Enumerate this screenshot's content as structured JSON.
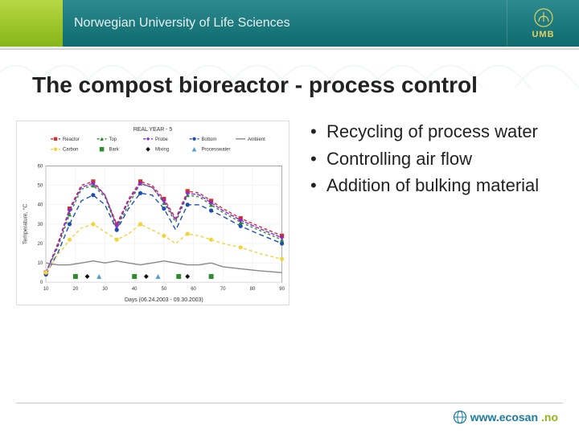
{
  "header": {
    "org_name": "Norwegian University of Life Sciences",
    "logo_text": "UMB",
    "left_block_color": "#8fb51b",
    "main_color": "#18797d"
  },
  "title": "The compost bioreactor - process control",
  "bullets": [
    "Recycling of process water",
    "Controlling air flow",
    "Addition of bulking material"
  ],
  "chart": {
    "type": "line",
    "title": "REAL YEAR - 5",
    "xlabel": "Days (06.24.2003 - 09.30.2003)",
    "ylabel": "Temperature, °C",
    "background_color": "#ffffff",
    "grid_color": "#e8e8e8",
    "xlim": [
      10,
      90
    ],
    "ylim": [
      0,
      60
    ],
    "xtick_step": 10,
    "ytick_step": 10,
    "title_fontsize": 7,
    "axis_fontsize": 7,
    "tick_fontsize": 6,
    "legend_fontsize": 6,
    "legend_position": "top-inside",
    "x": [
      10,
      14,
      18,
      22,
      26,
      30,
      34,
      38,
      42,
      46,
      50,
      54,
      58,
      62,
      66,
      70,
      76,
      82,
      90
    ],
    "series": [
      {
        "name": "Reactor",
        "color": "#d62c2c",
        "dash": "4 3",
        "marker": "square",
        "y": [
          5,
          20,
          38,
          50,
          52,
          45,
          30,
          43,
          52,
          50,
          43,
          33,
          47,
          46,
          42,
          38,
          33,
          29,
          24
        ]
      },
      {
        "name": "Top",
        "color": "#2e8b2e",
        "dash": "3 3",
        "marker": "triangle",
        "y": [
          5,
          18,
          35,
          48,
          50,
          44,
          28,
          40,
          51,
          49,
          41,
          31,
          45,
          44,
          40,
          36,
          31,
          27,
          22
        ]
      },
      {
        "name": "Probe",
        "color": "#8a2be2",
        "dash": "5 2",
        "marker": "diamond",
        "y": [
          5,
          19,
          37,
          49,
          51,
          45,
          29,
          42,
          51,
          49,
          42,
          32,
          46,
          45,
          41,
          37,
          32,
          28,
          23
        ]
      },
      {
        "name": "Bottom",
        "color": "#1e4fb0",
        "dash": "6 4",
        "marker": "circle",
        "y": [
          4,
          15,
          30,
          42,
          45,
          40,
          27,
          38,
          46,
          45,
          38,
          27,
          40,
          40,
          37,
          34,
          29,
          25,
          20
        ]
      },
      {
        "name": "Ambient",
        "color": "#888888",
        "dash": "none",
        "marker": "none",
        "y": [
          10,
          9,
          9,
          10,
          11,
          10,
          11,
          10,
          9,
          10,
          11,
          10,
          9,
          9,
          10,
          8,
          7,
          6,
          5
        ]
      },
      {
        "name": "Carbon",
        "color": "#f2d43a",
        "dash": "4 3",
        "marker": "circle",
        "y": [
          5,
          14,
          22,
          28,
          30,
          26,
          22,
          25,
          30,
          27,
          24,
          20,
          25,
          24,
          22,
          20,
          18,
          15,
          12
        ]
      }
    ],
    "event_markers": [
      {
        "name": "Bark",
        "color": "#2e8b2e",
        "shape": "square",
        "x": [
          20,
          40,
          55,
          66
        ]
      },
      {
        "name": "Mixing",
        "color": "#111111",
        "shape": "diamond",
        "x": [
          24,
          44,
          58
        ]
      },
      {
        "name": "Processwater",
        "color": "#4aa0d0",
        "shape": "triangle",
        "x": [
          28,
          48
        ]
      }
    ],
    "event_marker_y": 3
  },
  "footer": {
    "brand": "www.ecosan",
    "tld": ".no",
    "brand_color": "#1d7aa2",
    "tld_color": "#8fb51b"
  }
}
